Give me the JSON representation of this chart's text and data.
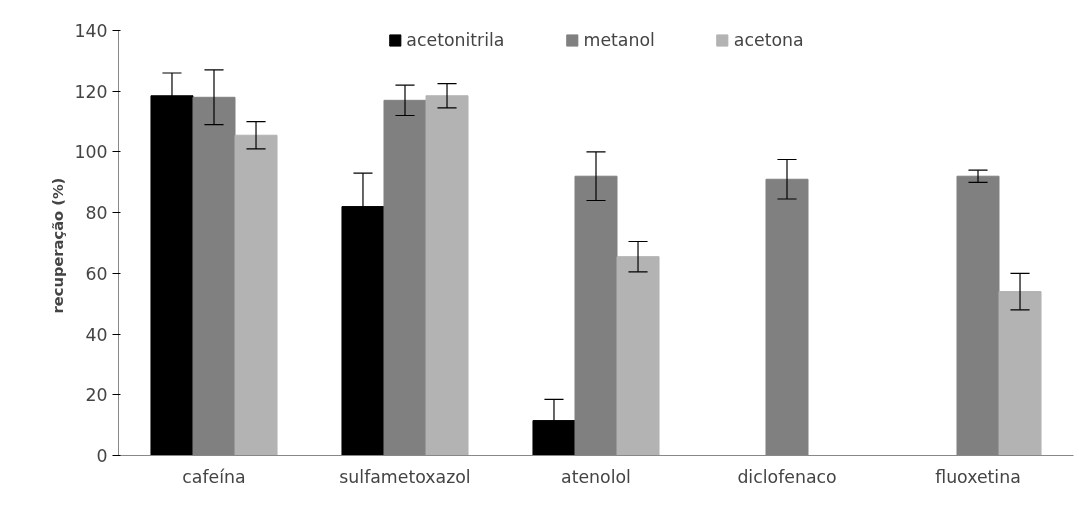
{
  "chart_data": {
    "type": "bar",
    "ylabel": "recuperação  (%)",
    "categories": [
      "cafeína",
      "sulfametoxazol",
      "atenolol",
      "diclofenaco",
      "fluoxetina"
    ],
    "series": [
      {
        "name": "acetonitrila",
        "color": "#000000",
        "values": [
          118.5,
          82,
          11.5,
          null,
          null
        ],
        "errors": [
          7.5,
          11,
          7,
          null,
          null
        ]
      },
      {
        "name": "metanol",
        "color": "#808080",
        "values": [
          118,
          117,
          92,
          91,
          92
        ],
        "errors": [
          9,
          5,
          8,
          6.5,
          2
        ]
      },
      {
        "name": "acetona",
        "color": "#b3b3b3",
        "values": [
          105.5,
          118.5,
          65.5,
          null,
          54
        ],
        "errors": [
          4.5,
          4,
          5,
          null,
          6
        ]
      }
    ],
    "ylim": [
      0,
      140
    ],
    "yticks": [
      0,
      20,
      40,
      60,
      80,
      100,
      120,
      140
    ],
    "grid": false,
    "legend": "top"
  }
}
